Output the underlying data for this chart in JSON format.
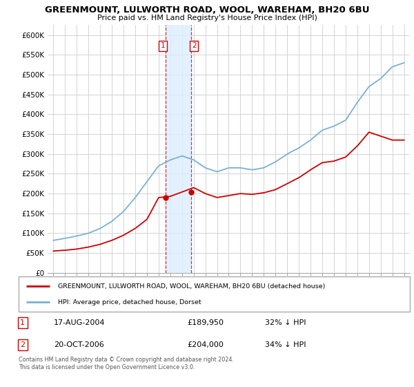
{
  "title": "GREENMOUNT, LULWORTH ROAD, WOOL, WAREHAM, BH20 6BU",
  "subtitle": "Price paid vs. HM Land Registry's House Price Index (HPI)",
  "legend_label_red": "GREENMOUNT, LULWORTH ROAD, WOOL, WAREHAM, BH20 6BU (detached house)",
  "legend_label_blue": "HPI: Average price, detached house, Dorset",
  "transaction1_date": "17-AUG-2004",
  "transaction1_price": "£189,950",
  "transaction1_hpi": "32% ↓ HPI",
  "transaction2_date": "20-OCT-2006",
  "transaction2_price": "£204,000",
  "transaction2_hpi": "34% ↓ HPI",
  "footer": "Contains HM Land Registry data © Crown copyright and database right 2024.\nThis data is licensed under the Open Government Licence v3.0.",
  "ytick_labels": [
    "£0",
    "£50K",
    "£100K",
    "£150K",
    "£200K",
    "£250K",
    "£300K",
    "£350K",
    "£400K",
    "£450K",
    "£500K",
    "£550K",
    "£600K"
  ],
  "yticks": [
    0,
    50000,
    100000,
    150000,
    200000,
    250000,
    300000,
    350000,
    400000,
    450000,
    500000,
    550000,
    600000
  ],
  "color_red": "#cc0000",
  "color_blue": "#7ab0d4",
  "color_shading": "#ddeeff",
  "background_color": "#ffffff",
  "grid_color": "#cccccc",
  "t1_year": 2004.625,
  "t1_price": 189950,
  "t2_year": 2006.792,
  "t2_price": 204000,
  "hpi_years": [
    1995,
    1996,
    1997,
    1998,
    1999,
    2000,
    2001,
    2002,
    2003,
    2004,
    2005,
    2006,
    2007,
    2008,
    2009,
    2010,
    2011,
    2012,
    2013,
    2014,
    2015,
    2016,
    2017,
    2018,
    2019,
    2020,
    2021,
    2022,
    2023,
    2024,
    2025
  ],
  "hpi_vals": [
    82000,
    87000,
    93000,
    100000,
    112000,
    130000,
    155000,
    190000,
    230000,
    270000,
    285000,
    295000,
    285000,
    265000,
    255000,
    265000,
    265000,
    260000,
    265000,
    280000,
    300000,
    315000,
    335000,
    360000,
    370000,
    385000,
    430000,
    470000,
    490000,
    520000,
    530000
  ],
  "red_years": [
    1995,
    1996,
    1997,
    1998,
    1999,
    2000,
    2001,
    2002,
    2003,
    2004,
    2005,
    2006,
    2007,
    2008,
    2009,
    2010,
    2011,
    2012,
    2013,
    2014,
    2015,
    2016,
    2017,
    2018,
    2019,
    2020,
    2021,
    2022,
    2023,
    2024,
    2025
  ],
  "red_vals": [
    55000,
    57000,
    60000,
    65000,
    72000,
    82000,
    95000,
    112000,
    135000,
    189950,
    193000,
    204000,
    215000,
    200000,
    190000,
    195000,
    200000,
    198000,
    202000,
    210000,
    225000,
    240000,
    260000,
    278000,
    282000,
    292000,
    320000,
    355000,
    345000,
    335000,
    335000
  ]
}
